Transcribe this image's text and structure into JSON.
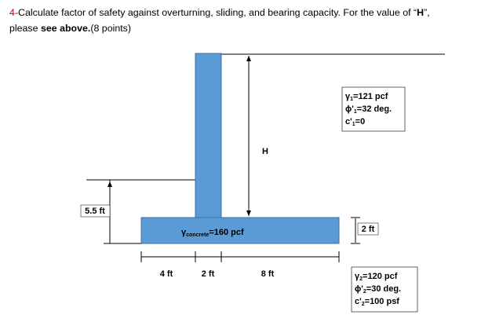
{
  "question": {
    "number": "4-",
    "line1": "Calculate factor of safety against overturning, sliding, and bearing capacity. For the value of “",
    "highlight": "H",
    "line1_end": "”,",
    "line2_start": "please ",
    "line2_bold": "see above.",
    "line2_end": "(8 points)"
  },
  "diagram": {
    "height_label": "H",
    "left_depth": "5.5 ft",
    "base_thickness": "2 ft",
    "toe": "4 ft",
    "stem": "2 ft",
    "heel": "8 ft",
    "concrete": {
      "symbol": "γ",
      "sub": "concrete",
      "text": "=160 pcf"
    },
    "soil1": [
      {
        "symbol": "γ",
        "sub": "1",
        "text": "=121 pcf"
      },
      {
        "symbol": "ϕ'",
        "sub": "1",
        "text": "=32 deg."
      },
      {
        "symbol": "c'",
        "sub": "1",
        "text": "=0"
      }
    ],
    "soil2": [
      {
        "symbol": "γ",
        "sub": "2",
        "text": "=120 pcf"
      },
      {
        "symbol": "ϕ'",
        "sub": "2",
        "text": "=30 deg."
      },
      {
        "symbol": "c'",
        "sub": "2",
        "text": "=100 psf"
      }
    ]
  }
}
